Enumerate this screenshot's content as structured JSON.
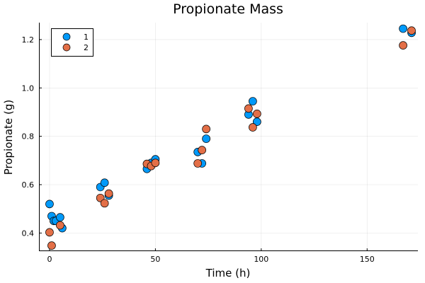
{
  "chart_data": {
    "type": "scatter",
    "title": "Propionate Mass",
    "xlabel": "Time (h)",
    "ylabel": "Propionate (g)",
    "xlim": [
      -5,
      174
    ],
    "ylim": [
      0.325,
      1.27
    ],
    "xticks": [
      0,
      50,
      100,
      150
    ],
    "yticks": [
      0.4,
      0.6,
      0.8,
      1.0,
      1.2
    ],
    "xtick_labels": [
      "0",
      "50",
      "100",
      "150"
    ],
    "ytick_labels": [
      "0.4",
      "0.6",
      "0.8",
      "1.0",
      "1.2"
    ],
    "grid": true,
    "legend_position": "top-left",
    "series": [
      {
        "name": "1",
        "color": "#009AFA",
        "points": [
          [
            0,
            0.52
          ],
          [
            1,
            0.47
          ],
          [
            2,
            0.45
          ],
          [
            3,
            0.45
          ],
          [
            5,
            0.465
          ],
          [
            6,
            0.42
          ],
          [
            24,
            0.59
          ],
          [
            26,
            0.608
          ],
          [
            28,
            0.555
          ],
          [
            46,
            0.665
          ],
          [
            48,
            0.69
          ],
          [
            50,
            0.705
          ],
          [
            70,
            0.735
          ],
          [
            72,
            0.688
          ],
          [
            74,
            0.79
          ],
          [
            94,
            0.89
          ],
          [
            96,
            0.945
          ],
          [
            98,
            0.86
          ],
          [
            167,
            1.245
          ],
          [
            171,
            1.228
          ]
        ]
      },
      {
        "name": "2",
        "color": "#E36F47",
        "points": [
          [
            0,
            0.403
          ],
          [
            1,
            0.348
          ],
          [
            5,
            0.432
          ],
          [
            24,
            0.545
          ],
          [
            26,
            0.523
          ],
          [
            28,
            0.563
          ],
          [
            46,
            0.686
          ],
          [
            48,
            0.677
          ],
          [
            50,
            0.69
          ],
          [
            70,
            0.688
          ],
          [
            72,
            0.743
          ],
          [
            74,
            0.83
          ],
          [
            94,
            0.915
          ],
          [
            96,
            0.837
          ],
          [
            98,
            0.893
          ],
          [
            167,
            1.176
          ],
          [
            171,
            1.237
          ]
        ]
      }
    ]
  }
}
